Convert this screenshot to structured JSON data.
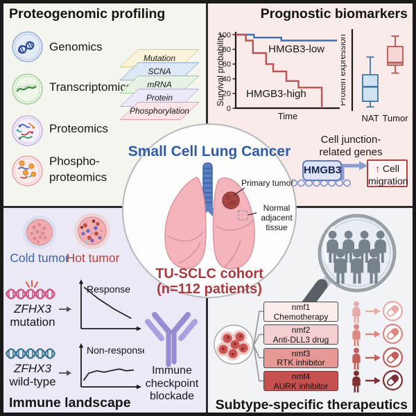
{
  "icons": {
    "arrow_right": "→",
    "arrow_up": "↑"
  },
  "palette": {
    "frame": "#1a1a1a",
    "tl_bg": "#f3f5ee",
    "tr_bg": "#f9ebe9",
    "bl_bg": "#eae9f5",
    "br_bg": "#f1f3f6",
    "center_blue": "#2e5aa8",
    "center_red": "#ab393d",
    "km_blue": "#3a6db3",
    "km_red": "#c0504f",
    "antibody_purple": "#978cd0",
    "people_gray": "#76828c"
  },
  "proteogenomics": {
    "title": "Proteogenomic profiling",
    "items": [
      {
        "label": "Genomics"
      },
      {
        "label": "Transcriptomics"
      },
      {
        "label": "Proteomics"
      },
      {
        "label": "Phospho-\nproteomics"
      }
    ],
    "layers": [
      {
        "label": "Mutation",
        "fill": "#fbf4da",
        "border": "#d9c687"
      },
      {
        "label": "SCNA",
        "fill": "#dde8f6",
        "border": "#8fa8cf"
      },
      {
        "label": "mRNA",
        "fill": "#e6f3e4",
        "border": "#9cc795"
      },
      {
        "label": "Protein",
        "fill": "#ebe8f8",
        "border": "#b3a8d6"
      },
      {
        "label": "Phosphorylation",
        "fill": "#fce5e8",
        "border": "#e39aa4"
      }
    ]
  },
  "prognostic": {
    "title": "Prognostic biomarkers",
    "cell_junction_label": "Cell junction-\nrelated genes",
    "gene_badge": "HMGB3",
    "migration_word": "Cell migration"
  },
  "immune": {
    "title": "Immune landscape",
    "cold_label": "Cold tumor",
    "hot_label": "Hot tumor",
    "rows": [
      {
        "gene": "ZFHX3",
        "state": "mutation"
      },
      {
        "gene": "ZFHX3",
        "state": "wild-type"
      }
    ],
    "icb_label": "Immune\ncheckpoint\nblockade"
  },
  "therapeutics": {
    "title": "Subtype-specific therapeutics",
    "subtypes": [
      {
        "name": "nmf1",
        "therapy": "Chemotherapy",
        "box_fill": "#fbecec",
        "accent": "#e8aba8"
      },
      {
        "name": "nmf2",
        "therapy": "Anti-DLL3 drug",
        "box_fill": "#f6d0d0",
        "accent": "#de8680"
      },
      {
        "name": "nmf3",
        "therapy": "RTK inhibitor",
        "box_fill": "#e79894",
        "accent": "#c25f5b"
      },
      {
        "name": "nmf4",
        "therapy": "AURK inhibitor",
        "box_fill": "#c5504e",
        "accent": "#7e3036"
      }
    ]
  },
  "center": {
    "title": "Small Cell Lung Cancer",
    "primary_tumor_label": "Primary tumor",
    "nat_label": "Normal\nadjacent tissue",
    "cohort_name": "TU-SCLC cohort",
    "cohort_n": "(n=112 patients)"
  },
  "chart_data": [
    {
      "type": "line",
      "subtype": "kaplan-meier",
      "xlabel": "Time",
      "ylabel": "Survival probability",
      "ylim": [
        0,
        100
      ],
      "yticks": [
        0,
        20,
        40,
        60,
        80,
        100
      ],
      "series": [
        {
          "name": "HMGB3-low",
          "color": "#3a6db3",
          "label_at": [
            0.6,
            76
          ],
          "points": [
            [
              0,
              100
            ],
            [
              0.18,
              100
            ],
            [
              0.18,
              96
            ],
            [
              0.45,
              96
            ],
            [
              0.45,
              92
            ],
            [
              1,
              92
            ]
          ]
        },
        {
          "name": "HMGB3-high",
          "color": "#c0504f",
          "label_at": [
            0.4,
            15
          ],
          "points": [
            [
              0,
              100
            ],
            [
              0.1,
              100
            ],
            [
              0.1,
              92
            ],
            [
              0.17,
              92
            ],
            [
              0.17,
              75
            ],
            [
              0.3,
              75
            ],
            [
              0.3,
              60
            ],
            [
              0.37,
              60
            ],
            [
              0.37,
              50
            ],
            [
              0.5,
              50
            ],
            [
              0.5,
              37
            ],
            [
              0.62,
              37
            ],
            [
              0.62,
              28
            ],
            [
              0.85,
              28
            ],
            [
              0.85,
              0
            ]
          ]
        }
      ]
    },
    {
      "type": "box",
      "ylabel": "Protein expression",
      "categories": [
        "NAT",
        "Tumor"
      ],
      "boxes": [
        {
          "label": "NAT",
          "low": 5,
          "q1": 12,
          "median": 30,
          "q3": 45,
          "high": 67,
          "fill": "#cfe3f2",
          "stroke": "#41759f"
        },
        {
          "label": "Tumor",
          "low": 47,
          "q1": 57,
          "median": 60,
          "q3": 80,
          "high": 93,
          "fill": "#f6d7d6",
          "stroke": "#c0504f"
        }
      ]
    },
    {
      "type": "line",
      "label": "Response",
      "points": [
        [
          0.03,
          0.93
        ],
        [
          0.3,
          0.66
        ],
        [
          0.62,
          0.4
        ],
        [
          0.95,
          0.18
        ]
      ]
    },
    {
      "type": "line",
      "label": "Non-response",
      "points": [
        [
          0.02,
          0.1
        ],
        [
          0.12,
          0.3
        ],
        [
          0.28,
          0.37
        ],
        [
          0.42,
          0.33
        ],
        [
          0.58,
          0.38
        ],
        [
          0.72,
          0.42
        ],
        [
          0.85,
          0.37
        ],
        [
          1,
          0.39
        ]
      ]
    }
  ]
}
